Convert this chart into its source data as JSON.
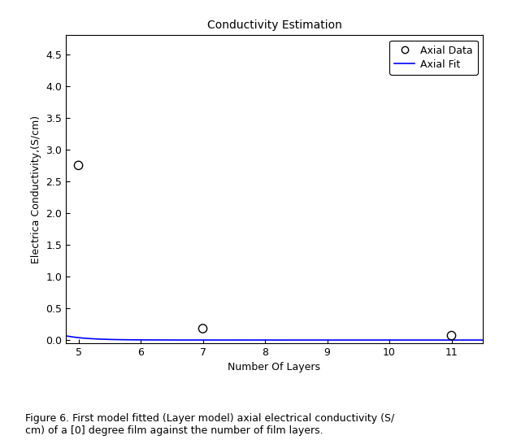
{
  "title": "Conductivity Estimation",
  "xlabel": "Number Of Layers",
  "ylabel": "Electrica Conductivity,(S/cm)",
  "data_x": [
    5,
    7,
    11
  ],
  "data_y": [
    2.75,
    0.18,
    0.07
  ],
  "fit_params": {
    "a": 45000.0,
    "b": -2.8
  },
  "xlim": [
    4.8,
    11.5
  ],
  "ylim": [
    -0.05,
    4.8
  ],
  "xticks": [
    5,
    6,
    7,
    8,
    9,
    10,
    11
  ],
  "yticks": [
    0,
    0.5,
    1,
    1.5,
    2,
    2.5,
    3,
    3.5,
    4,
    4.5
  ],
  "line_color": "#0000ff",
  "data_color": "#000000",
  "legend_labels": [
    "Axial Data",
    "Axial Fit"
  ],
  "background_color": "#ffffff",
  "title_fontsize": 10,
  "label_fontsize": 9,
  "tick_fontsize": 9,
  "fig_width": 5.5,
  "fig_height": 4.2,
  "caption": "Figure 6. First model fitted (Layer model) axial electrical conductivity (S/\ncm) of a [0] degree film against the number of film layers."
}
